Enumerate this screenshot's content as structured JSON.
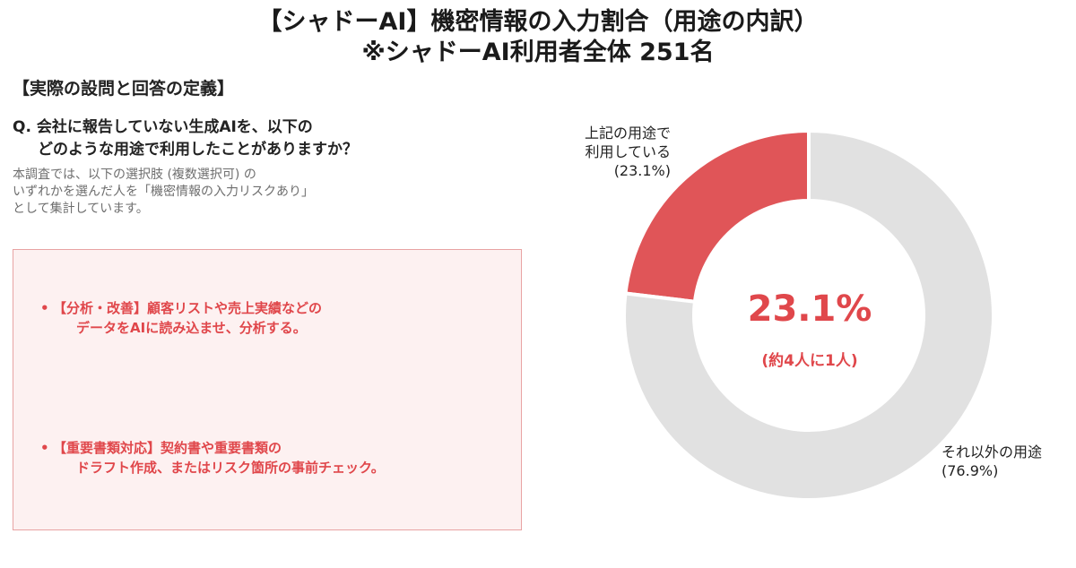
{
  "title_line1": "【シャドーAI】機密情報の入力割合（用途の内訳）",
  "title_line2": "※シャドーAI利用者全体 251名",
  "section_heading": "【実際の設問と回答の定義】",
  "question": {
    "line1": "Q. 会社に報告していない生成AIを、以下の",
    "line2": "どのような用途で利用したことがありますか？"
  },
  "note": {
    "line1": "本調査では、以下の選択肢 (複数選択可) の",
    "line2": "いずれかを選んだ人を「機密情報の入力リスクあり」",
    "line3": "として集計しています。"
  },
  "bullets": [
    {
      "marker": "•",
      "line1": "【分析・改善】顧客リストや売上実績などの",
      "line2": "データをAIに読み込ませ、分析する。"
    },
    {
      "marker": "•",
      "line1": "【重要書類対応】契約書や重要書類の",
      "line2": "ドラフト作成、またはリスク箇所の事前チェック。"
    }
  ],
  "colors": {
    "accent": "#e0474b",
    "slice_highlight": "#e05558",
    "slice_other": "#e1e1e1",
    "box_bg": "#fdf1f1",
    "box_border": "#e8a3a3"
  },
  "chart_data": {
    "type": "pie",
    "variant": "donut",
    "categories": [
      "上記の用途で利用している",
      "それ以外の用途"
    ],
    "values": [
      23.1,
      76.9
    ],
    "unit": "%",
    "slice_labels": [
      {
        "line1": "上記の用途で",
        "line2": "利用している",
        "line3": "(23.1%)"
      },
      {
        "line1": "それ以外の用途",
        "line2": "(76.9%)"
      }
    ],
    "center_value": "23.1%",
    "center_note": "(約4人に1人)",
    "legend": "none"
  }
}
